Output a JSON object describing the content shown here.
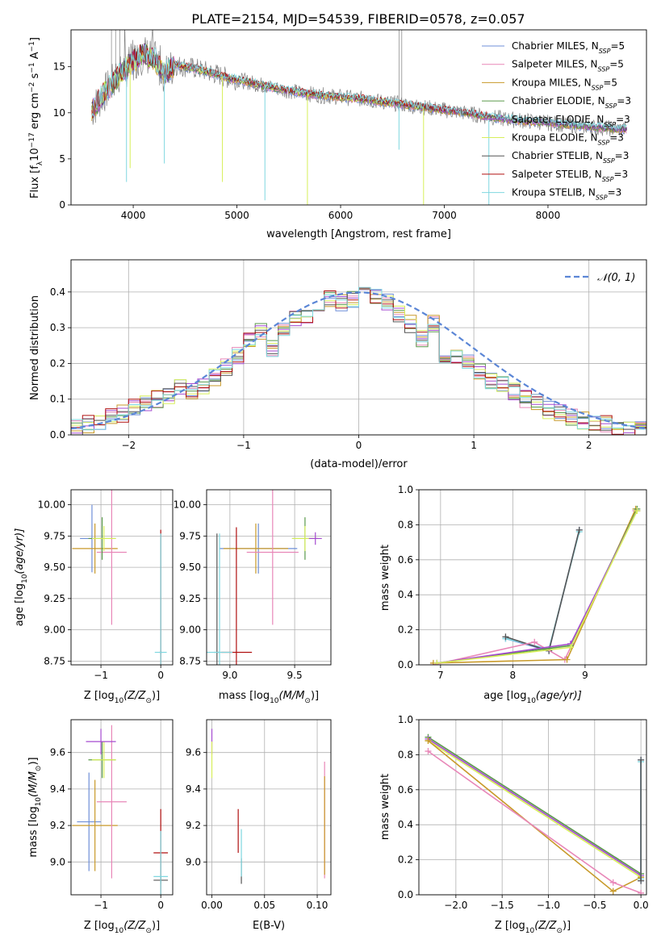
{
  "title": "PLATE=2154, MJD=54539, FIBERID=0578, z=0.057",
  "colors": {
    "chabrier_miles": "#6f8fd8",
    "salpeter_miles": "#e887b8",
    "kroupa_miles": "#c89a2a",
    "chabrier_elodie": "#5a9a4a",
    "salpeter_elodie": "#a54bd0",
    "kroupa_elodie": "#d7ef5a",
    "chabrier_stelib": "#555555",
    "salpeter_stelib": "#b01010",
    "kroupa_stelib": "#7fd7e0",
    "data": "#808080",
    "normal": "#5b86d6",
    "grid": "#b0b0b0"
  },
  "chart_data": [
    {
      "id": "spectrum",
      "type": "line",
      "title": "PLATE=2154, MJD=54539, FIBERID=0578, z=0.057",
      "xlabel": "wavelength [Angstrom, rest frame]",
      "ylabel": "Flux [f",
      "ylabel_sub": "λ",
      "ylabel_tail": "10",
      "ylabel_exp": "−17",
      "ylabel_units": " erg cm",
      "ylabel_units_exp": "−2",
      "ylabel_units2": " s",
      "ylabel_units2_exp": "−1",
      "ylabel_units3": " A",
      "ylabel_units3_exp": "−1",
      "ylabel_close": "]",
      "xlim": [
        3400,
        8950
      ],
      "ylim": [
        0,
        19
      ],
      "xticks": [
        "4000",
        "5000",
        "6000",
        "7000",
        "8000"
      ],
      "xtick_values": [
        4000,
        5000,
        6000,
        7000,
        8000
      ],
      "yticks": [
        "0",
        "5",
        "10",
        "15"
      ],
      "ytick_values": [
        0,
        5,
        10,
        15
      ],
      "grid": false,
      "legend_position": "top-right",
      "legend": [
        {
          "label": "Chabrier MILES, N",
          "sub": "SSP",
          "tail": "=5",
          "color_key": "chabrier_miles"
        },
        {
          "label": "Salpeter MILES, N",
          "sub": "SSP",
          "tail": "=5",
          "color_key": "salpeter_miles"
        },
        {
          "label": "Kroupa MILES, N",
          "sub": "SSP",
          "tail": "=5",
          "color_key": "kroupa_miles"
        },
        {
          "label": "Chabrier ELODIE, N",
          "sub": "SSP",
          "tail": "=3",
          "color_key": "chabrier_elodie"
        },
        {
          "label": "Salpeter ELODIE, N",
          "sub": "SSP",
          "tail": "=3",
          "color_key": "salpeter_elodie"
        },
        {
          "label": "Kroupa ELODIE, N",
          "sub": "SSP",
          "tail": "=3",
          "color_key": "kroupa_elodie"
        },
        {
          "label": "Chabrier STELIB, N",
          "sub": "SSP",
          "tail": "=3",
          "color_key": "chabrier_stelib"
        },
        {
          "label": "Salpeter STELIB, N",
          "sub": "SSP",
          "tail": "=3",
          "color_key": "salpeter_stelib"
        },
        {
          "label": "Kroupa STELIB, N",
          "sub": "SSP",
          "tail": "=3",
          "color_key": "kroupa_stelib"
        }
      ],
      "data_continuum": [
        [
          3600,
          10.2
        ],
        [
          3700,
          11.8
        ],
        [
          3800,
          13.2
        ],
        [
          3900,
          14.5
        ],
        [
          4000,
          15.6
        ],
        [
          4100,
          16.4
        ],
        [
          4200,
          15.8
        ],
        [
          4300,
          14.2
        ],
        [
          4400,
          15.2
        ],
        [
          4500,
          15.0
        ],
        [
          4600,
          14.8
        ],
        [
          4700,
          14.5
        ],
        [
          4800,
          14.2
        ],
        [
          4900,
          13.8
        ],
        [
          5000,
          13.6
        ],
        [
          5200,
          13.1
        ],
        [
          5400,
          12.6
        ],
        [
          5600,
          12.2
        ],
        [
          5800,
          11.9
        ],
        [
          6000,
          11.7
        ],
        [
          6200,
          11.5
        ],
        [
          6400,
          11.2
        ],
        [
          6600,
          10.9
        ],
        [
          6800,
          10.6
        ],
        [
          7000,
          10.3
        ],
        [
          7200,
          10.0
        ],
        [
          7400,
          9.6
        ],
        [
          7600,
          9.3
        ],
        [
          7800,
          9.1
        ],
        [
          8000,
          8.9
        ],
        [
          8200,
          8.7
        ],
        [
          8400,
          8.5
        ],
        [
          8600,
          8.3
        ],
        [
          8760,
          8.2
        ]
      ],
      "absorption_dips": [
        [
          3935,
          2.5
        ],
        [
          3970,
          4.0
        ],
        [
          4300,
          4.5
        ],
        [
          4860,
          2.5
        ],
        [
          5270,
          0.5
        ],
        [
          5680,
          0.0
        ],
        [
          6563,
          6.0
        ],
        [
          6800,
          0.0
        ],
        [
          7430,
          0.0
        ]
      ]
    },
    {
      "id": "residuals",
      "type": "histogram",
      "xlabel": "(data-model)/error",
      "ylabel": "Normed distribution",
      "xlim": [
        -2.5,
        2.5
      ],
      "ylim": [
        0,
        0.49
      ],
      "xticks": [
        "−2",
        "−1",
        "0",
        "1",
        "2"
      ],
      "xtick_values": [
        -2,
        -1,
        0,
        1,
        2
      ],
      "yticks": [
        "0.0",
        "0.1",
        "0.2",
        "0.3",
        "0.4"
      ],
      "ytick_values": [
        0,
        0.1,
        0.2,
        0.3,
        0.4
      ],
      "grid": true,
      "legend_position": "top-right",
      "legend": [
        {
          "label": "𝒩(0, 1)",
          "color_key": "normal"
        }
      ],
      "bin_width": 0.1,
      "bin_start": -2.5,
      "values": [
        0.02,
        0.03,
        0.03,
        0.05,
        0.06,
        0.08,
        0.09,
        0.1,
        0.11,
        0.13,
        0.12,
        0.14,
        0.16,
        0.19,
        0.22,
        0.26,
        0.29,
        0.24,
        0.3,
        0.33,
        0.33,
        0.35,
        0.38,
        0.37,
        0.38,
        0.43,
        0.39,
        0.37,
        0.34,
        0.31,
        0.27,
        0.31,
        0.22,
        0.22,
        0.2,
        0.18,
        0.15,
        0.14,
        0.12,
        0.1,
        0.09,
        0.07,
        0.06,
        0.05,
        0.04,
        0.03,
        0.03,
        0.02,
        0.02,
        0.02
      ]
    },
    {
      "id": "age_vs_Z",
      "type": "scatter",
      "xlabel": "Z [log",
      "xlabel_sub": "10",
      "xlabel_tail": "(Z/Z",
      "xlabel_sun": "⊙",
      "xlabel_close": ")]",
      "ylabel": "age  [log",
      "ylabel_sub": "10",
      "ylabel_tail": "(age/yr)]",
      "xlim": [
        -1.5,
        0.2
      ],
      "ylim": [
        8.72,
        10.12
      ],
      "xticks": [
        "−1",
        "0"
      ],
      "xtick_values": [
        -1,
        0
      ],
      "yticks": [
        "8.75",
        "9.00",
        "9.25",
        "9.50",
        "9.75",
        "10.00"
      ],
      "ytick_values": [
        8.75,
        9.0,
        9.25,
        9.5,
        9.75,
        10.0
      ],
      "grid": true,
      "points": [
        {
          "color_key": "chabrier_miles",
          "x": -1.15,
          "y": 9.73,
          "xerr": 0.2,
          "yerr": 0.27
        },
        {
          "color_key": "kroupa_miles",
          "x": -1.1,
          "y": 9.65,
          "xerr": 0.38,
          "yerr": 0.2
        },
        {
          "color_key": "salpeter_miles",
          "x": -0.82,
          "y": 9.62,
          "xerr": 0.25,
          "yerr": 0.58
        },
        {
          "color_key": "chabrier_elodie",
          "x": -0.98,
          "y": 9.73,
          "xerr": 0.23,
          "yerr": 0.17
        },
        {
          "color_key": "kroupa_elodie",
          "x": -0.95,
          "y": 9.73,
          "xerr": 0.2,
          "yerr": 0.1
        },
        {
          "color_key": "salpeter_stelib",
          "x": 0.0,
          "y": 8.82,
          "xerr": 0.02,
          "yerr": 0.98
        },
        {
          "color_key": "kroupa_stelib",
          "x": 0.0,
          "y": 8.82,
          "xerr": 0.1,
          "yerr": 0.95
        }
      ]
    },
    {
      "id": "age_vs_mass",
      "type": "scatter",
      "xlabel": "mass [log",
      "xlabel_sub": "10",
      "xlabel_tail": "(M/M",
      "xlabel_sun": "⊙",
      "xlabel_close": ")]",
      "xlim": [
        8.82,
        9.78
      ],
      "ylim": [
        8.72,
        10.12
      ],
      "xticks": [
        "9.0",
        "9.5"
      ],
      "xtick_values": [
        9.0,
        9.5
      ],
      "yticks": [
        "8.75",
        "9.00",
        "9.25",
        "9.50",
        "9.75",
        "10.00"
      ],
      "ytick_values": [
        8.75,
        9.0,
        9.25,
        9.5,
        9.75,
        10.0
      ],
      "grid": true,
      "points": [
        {
          "color_key": "chabrier_miles",
          "x": 9.22,
          "y": 9.65,
          "xerr": 0.3,
          "yerr": 0.2
        },
        {
          "color_key": "kroupa_miles",
          "x": 9.2,
          "y": 9.65,
          "xerr": 0.25,
          "yerr": 0.2
        },
        {
          "color_key": "salpeter_miles",
          "x": 9.33,
          "y": 9.62,
          "xerr": 0.2,
          "yerr": 0.58
        },
        {
          "color_key": "chabrier_elodie",
          "x": 9.58,
          "y": 9.73,
          "xerr": 0.1,
          "yerr": 0.17
        },
        {
          "color_key": "kroupa_elodie",
          "x": 9.58,
          "y": 9.73,
          "xerr": 0.1,
          "yerr": 0.1
        },
        {
          "color_key": "salpeter_elodie",
          "x": 9.66,
          "y": 9.73,
          "xerr": 0.05,
          "yerr": 0.05
        },
        {
          "color_key": "chabrier_stelib",
          "x": 8.9,
          "y": 8.82,
          "xerr": 0.02,
          "yerr": 0.95
        },
        {
          "color_key": "salpeter_stelib",
          "x": 9.05,
          "y": 8.82,
          "xerr": 0.12,
          "yerr": 1.0
        },
        {
          "color_key": "kroupa_stelib",
          "x": 8.92,
          "y": 8.82,
          "xerr": 0.1,
          "yerr": 0.95
        }
      ]
    },
    {
      "id": "massweight_vs_age",
      "type": "line",
      "xlabel": "age  [log",
      "xlabel_sub": "10",
      "xlabel_tail": "(age/yr)]",
      "ylabel": "mass weight",
      "xlim": [
        6.7,
        9.85
      ],
      "ylim": [
        0,
        1.0
      ],
      "xticks": [
        "7",
        "8",
        "9"
      ],
      "xtick_values": [
        7,
        8,
        9
      ],
      "yticks": [
        "0.0",
        "0.2",
        "0.4",
        "0.6",
        "0.8",
        "1.0"
      ],
      "ytick_values": [
        0,
        0.2,
        0.4,
        0.6,
        0.8,
        1.0
      ],
      "grid": true,
      "series": [
        {
          "color_key": "chabrier_miles",
          "x": [
            7.9,
            8.5,
            8.92
          ],
          "y": [
            0.15,
            0.08,
            0.77
          ]
        },
        {
          "color_key": "kroupa_stelib",
          "x": [
            7.9,
            8.5,
            8.92
          ],
          "y": [
            0.15,
            0.09,
            0.76
          ]
        },
        {
          "color_key": "chabrier_stelib",
          "x": [
            7.9,
            8.5,
            8.92
          ],
          "y": [
            0.16,
            0.08,
            0.77
          ]
        },
        {
          "color_key": "salpeter_miles",
          "x": [
            6.9,
            8.3,
            8.72,
            9.7
          ],
          "y": [
            0.0,
            0.13,
            0.03,
            0.88
          ]
        },
        {
          "color_key": "kroupa_miles",
          "x": [
            6.9,
            8.75,
            9.7
          ],
          "y": [
            0.01,
            0.03,
            0.89
          ]
        },
        {
          "color_key": "chabrier_elodie",
          "x": [
            6.95,
            8.8,
            9.72
          ],
          "y": [
            0.01,
            0.11,
            0.89
          ]
        },
        {
          "color_key": "salpeter_elodie",
          "x": [
            6.95,
            8.8,
            9.72
          ],
          "y": [
            0.01,
            0.12,
            0.88
          ]
        },
        {
          "color_key": "kroupa_elodie",
          "x": [
            6.95,
            8.8,
            9.72
          ],
          "y": [
            0.01,
            0.1,
            0.88
          ]
        }
      ]
    },
    {
      "id": "mass_vs_Z",
      "type": "scatter",
      "xlabel": "Z [log",
      "xlabel_sub": "10",
      "xlabel_tail": "(Z/Z",
      "xlabel_sun": "⊙",
      "xlabel_close": ")]",
      "ylabel": "mass [log",
      "ylabel_sub": "10",
      "ylabel_tail": "(M/M",
      "ylabel_sun": "⊙",
      "ylabel_close": ")]",
      "xlim": [
        -1.5,
        0.2
      ],
      "ylim": [
        8.82,
        9.78
      ],
      "xticks": [
        "−1",
        "0"
      ],
      "xtick_values": [
        -1,
        0
      ],
      "yticks": [
        "9.0",
        "9.2",
        "9.4",
        "9.6"
      ],
      "ytick_values": [
        9.0,
        9.2,
        9.4,
        9.6
      ],
      "grid": true,
      "points": [
        {
          "color_key": "chabrier_miles",
          "x": -1.2,
          "y": 9.22,
          "xerr": 0.2,
          "yerr": 0.27
        },
        {
          "color_key": "kroupa_miles",
          "x": -1.1,
          "y": 9.2,
          "xerr": 0.38,
          "yerr": 0.25
        },
        {
          "color_key": "salpeter_miles",
          "x": -0.82,
          "y": 9.33,
          "xerr": 0.25,
          "yerr": 0.42
        },
        {
          "color_key": "chabrier_elodie",
          "x": -0.98,
          "y": 9.56,
          "xerr": 0.23,
          "yerr": 0.1
        },
        {
          "color_key": "kroupa_elodie",
          "x": -0.95,
          "y": 9.56,
          "xerr": 0.2,
          "yerr": 0.1
        },
        {
          "color_key": "salpeter_elodie",
          "x": -1.0,
          "y": 9.66,
          "xerr": 0.25,
          "yerr": 0.07
        },
        {
          "color_key": "salpeter_stelib",
          "x": 0.0,
          "y": 9.05,
          "xerr": 0.12,
          "yerr": 0.24
        },
        {
          "color_key": "chabrier_stelib",
          "x": 0.0,
          "y": 8.9,
          "xerr": 0.12,
          "yerr": 0.02
        },
        {
          "color_key": "kroupa_stelib",
          "x": 0.0,
          "y": 8.92,
          "xerr": 0.12,
          "yerr": 0.25
        }
      ]
    },
    {
      "id": "mass_vs_ebv",
      "type": "scatter",
      "xlabel": "E(B-V)",
      "xlim": [
        -0.005,
        0.113
      ],
      "ylim": [
        8.82,
        9.78
      ],
      "xticks": [
        "0.00",
        "0.05",
        "0.10"
      ],
      "xtick_values": [
        0,
        0.05,
        0.1
      ],
      "yticks": [
        "9.0",
        "9.2",
        "9.4",
        "9.6"
      ],
      "ytick_values": [
        9.0,
        9.2,
        9.4,
        9.6
      ],
      "grid": true,
      "points": [
        {
          "color_key": "salpeter_elodie",
          "x": 0.0,
          "y": 9.66,
          "xerr": 0.0,
          "yerr": 0.07
        },
        {
          "color_key": "kroupa_elodie",
          "x": 0.0,
          "y": 9.56,
          "xerr": 0.0,
          "yerr": 0.1
        },
        {
          "color_key": "salpeter_stelib",
          "x": 0.025,
          "y": 9.17,
          "xerr": 0.0,
          "yerr": 0.12
        },
        {
          "color_key": "chabrier_stelib",
          "x": 0.028,
          "y": 8.95,
          "xerr": 0.0,
          "yerr": 0.07
        },
        {
          "color_key": "kroupa_stelib",
          "x": 0.028,
          "y": 9.05,
          "xerr": 0.0,
          "yerr": 0.13
        },
        {
          "color_key": "salpeter_miles",
          "x": 0.107,
          "y": 9.23,
          "xerr": 0.0,
          "yerr": 0.32
        },
        {
          "color_key": "kroupa_miles",
          "x": 0.107,
          "y": 9.2,
          "xerr": 0.0,
          "yerr": 0.27
        }
      ]
    },
    {
      "id": "massweight_vs_Z",
      "type": "line",
      "xlabel": "Z [log",
      "xlabel_sub": "10",
      "xlabel_tail": "(Z/Z",
      "xlabel_sun": "⊙",
      "xlabel_close": ")]",
      "ylabel": "mass weight",
      "xlim": [
        -2.4,
        0.06
      ],
      "ylim": [
        0,
        1.0
      ],
      "xticks": [
        "−2.0",
        "−1.5",
        "−1.0",
        "−0.5",
        "0.0"
      ],
      "xtick_values": [
        -2.0,
        -1.5,
        -1.0,
        -0.5,
        0.0
      ],
      "yticks": [
        "0.0",
        "0.2",
        "0.4",
        "0.6",
        "0.8",
        "1.0"
      ],
      "ytick_values": [
        0,
        0.2,
        0.4,
        0.6,
        0.8,
        1.0
      ],
      "grid": true,
      "series": [
        {
          "color_key": "chabrier_elodie",
          "x": [
            -2.3,
            0.0
          ],
          "y": [
            0.9,
            0.12
          ]
        },
        {
          "color_key": "salpeter_elodie",
          "x": [
            -2.3,
            0.0
          ],
          "y": [
            0.89,
            0.11
          ]
        },
        {
          "color_key": "kroupa_elodie",
          "x": [
            -2.3,
            0.0
          ],
          "y": [
            0.88,
            0.1
          ]
        },
        {
          "color_key": "kroupa_miles",
          "x": [
            -2.3,
            -0.3,
            0.0
          ],
          "y": [
            0.88,
            0.02,
            0.1
          ]
        },
        {
          "color_key": "salpeter_miles",
          "x": [
            -2.3,
            -0.3,
            0.0
          ],
          "y": [
            0.82,
            0.07,
            0.01
          ]
        },
        {
          "color_key": "chabrier_miles",
          "x": [
            0.0,
            0.0
          ],
          "y": [
            0.77,
            0.08
          ]
        },
        {
          "color_key": "kroupa_stelib",
          "x": [
            0.0,
            0.0
          ],
          "y": [
            0.76,
            0.09
          ]
        },
        {
          "color_key": "chabrier_stelib",
          "x": [
            0.0,
            0.0
          ],
          "y": [
            0.77,
            0.08
          ]
        }
      ]
    }
  ]
}
